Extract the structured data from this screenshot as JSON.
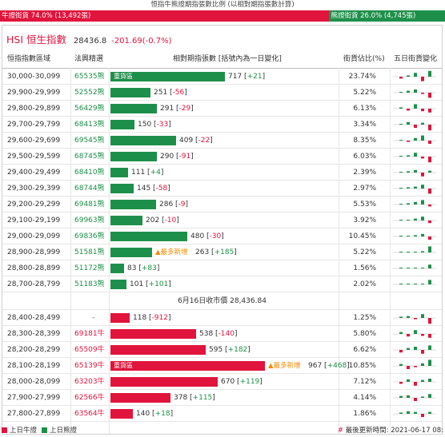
{
  "top_title": "恒指牛熊證期指張數比例 (以相對期指張數計算)",
  "ratio": {
    "bull_label": "牛證街貨 74.0% (13,492張)",
    "bull_pct": 74.0,
    "bear_label": "熊證街貨 26.0% (4,745張)",
    "bear_pct": 26.0
  },
  "hsi": {
    "title": "HSI 恒生指數",
    "value": "28436.8",
    "change": "-201.69(-0.7%)"
  },
  "columns": {
    "range": "恒指指數區域",
    "code": "法興精選",
    "contracts": "相對期指張數 [括號內為一日變化]",
    "ratio": "街貨佔比(%)",
    "five_day": "五日街貨變化"
  },
  "bear_rows": [
    {
      "range": "30,000-30,099",
      "code": "65535熊",
      "value": 717,
      "delta": "+21",
      "label": "重貨區",
      "pct": "23.74%",
      "spark": [
        -0.3,
        0.2,
        0.6,
        -0.7,
        0.9
      ]
    },
    {
      "range": "29,900-29,999",
      "code": "52552熊",
      "value": 251,
      "delta": "-56",
      "pct": "5.22%",
      "spark": [
        0.1,
        0.3,
        0.5,
        -0.2,
        -0.8
      ]
    },
    {
      "range": "29,800-29,899",
      "code": "56429熊",
      "value": 291,
      "delta": "-29",
      "pct": "6.13%",
      "spark": [
        0.2,
        -0.3,
        0.7,
        -0.4,
        -0.6
      ]
    },
    {
      "range": "29,700-29,799",
      "code": "68413熊",
      "value": 150,
      "delta": "-33",
      "pct": "3.34%",
      "spark": [
        0.1,
        0.4,
        -0.5,
        0.3,
        -0.9
      ]
    },
    {
      "range": "29,600-29,699",
      "code": "69545熊",
      "value": 409,
      "delta": "-22",
      "pct": "8.35%",
      "spark": [
        0.1,
        -0.2,
        0.4,
        0.8,
        -0.5
      ]
    },
    {
      "range": "29,500-29,599",
      "code": "68745熊",
      "value": 290,
      "delta": "-91",
      "pct": "6.03%",
      "spark": [
        0.1,
        0.2,
        0.6,
        -0.3,
        -0.9
      ]
    },
    {
      "range": "29,400-29,499",
      "code": "68410熊",
      "value": 111,
      "delta": "+4",
      "pct": "2.39%",
      "spark": [
        0.1,
        0.2,
        0.4,
        -0.6,
        0.3
      ]
    },
    {
      "range": "29,300-29,399",
      "code": "68744熊",
      "value": 145,
      "delta": "-58",
      "pct": "2.97%",
      "spark": [
        0.1,
        0.2,
        0.3,
        0.6,
        -0.8
      ]
    },
    {
      "range": "29,200-29,299",
      "code": "69481熊",
      "value": 286,
      "delta": "-9",
      "pct": "5.53%",
      "spark": [
        0.1,
        0.2,
        0.4,
        0.7,
        -0.3
      ]
    },
    {
      "range": "29,100-29,199",
      "code": "69963熊",
      "value": 202,
      "delta": "-10",
      "pct": "3.92%",
      "spark": [
        0.1,
        0.1,
        0.3,
        0.6,
        -0.4
      ]
    },
    {
      "range": "29,000-29,099",
      "code": "69836熊",
      "value": 480,
      "delta": "-30",
      "pct": "10.45%",
      "spark": [
        0.1,
        0.1,
        0.2,
        0.4,
        -0.5
      ]
    },
    {
      "range": "28,900-28,999",
      "code": "51581熊",
      "value": 263,
      "delta": "+185",
      "note": "▲最多新增",
      "pct": "5.22%",
      "spark": [
        0.05,
        0.05,
        0.1,
        0.2,
        0.95
      ]
    },
    {
      "range": "28,800-28,899",
      "code": "51172熊",
      "value": 83,
      "delta": "+83",
      "pct": "1.56%",
      "spark": [
        0,
        0,
        0,
        0,
        0.6
      ]
    },
    {
      "range": "28,700-28,799",
      "code": "51183熊",
      "value": 101,
      "delta": "+101",
      "pct": "2.02%",
      "spark": [
        0,
        0,
        0,
        0,
        0.7
      ]
    }
  ],
  "close_label": "6月16日收市價 28,436.84",
  "bull_rows": [
    {
      "range": "28,400-28,499",
      "code": "-",
      "value": 118,
      "delta": "-912",
      "pct": "1.25%",
      "spark": [
        0.2,
        0.3,
        -0.2,
        0.6,
        -0.9
      ]
    },
    {
      "range": "28,300-28,399",
      "code": "69181牛",
      "value": 538,
      "delta": "-140",
      "pct": "5.80%",
      "spark": [
        0.3,
        -0.4,
        0.6,
        -0.3,
        -0.6
      ]
    },
    {
      "range": "28,200-28,299",
      "code": "65509牛",
      "value": 595,
      "delta": "+182",
      "pct": "6.62%",
      "spark": [
        -0.4,
        0.3,
        0.5,
        -0.6,
        0.7
      ]
    },
    {
      "range": "28,100-28,199",
      "code": "65139牛",
      "value": 967,
      "delta": "+468",
      "label": "重貨區",
      "note": "▲最多新增",
      "pct": "10.85%",
      "spark": [
        0.3,
        -0.5,
        -0.2,
        0.4,
        0.95
      ]
    },
    {
      "range": "28,000-28,099",
      "code": "63203牛",
      "value": 670,
      "delta": "+119",
      "pct": "7.12%",
      "spark": [
        -0.3,
        0.4,
        -0.6,
        0.3,
        0.5
      ]
    },
    {
      "range": "27,900-27,999",
      "code": "62566牛",
      "value": 378,
      "delta": "+115",
      "pct": "4.14%",
      "spark": [
        0.3,
        0.4,
        -0.5,
        0.2,
        0.6
      ]
    },
    {
      "range": "27,800-27,899",
      "code": "63564牛",
      "value": 140,
      "delta": "+18",
      "pct": "1.86%",
      "spark": [
        0.2,
        0.4,
        0.3,
        -0.5,
        0.3
      ]
    }
  ],
  "footer": {
    "bull_legend": "上日牛證",
    "bear_legend": "上日熊證",
    "updated": "最後更新時間: 2021-06-17 08:",
    "hash": "#"
  },
  "colors": {
    "bull": "#e0143c",
    "bear": "#1e8f4a",
    "note": "#f08c00"
  }
}
